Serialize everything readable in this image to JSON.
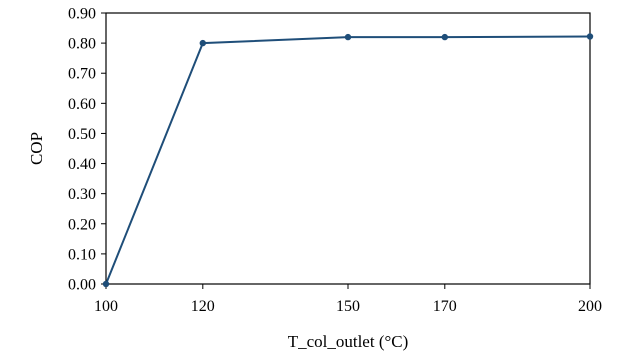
{
  "chart_data": {
    "type": "line",
    "title": "",
    "xlabel": "T_col_outlet (°C)",
    "ylabel": "COP",
    "categories": [
      "100",
      "120",
      "150",
      "170",
      "200"
    ],
    "series": [
      {
        "values": [
          0.0,
          0.8,
          0.82,
          0.82,
          0.822
        ],
        "color": "#1f4e79"
      }
    ],
    "ylim": [
      0,
      0.9
    ],
    "yticks": [
      "0.00",
      "0.10",
      "0.20",
      "0.30",
      "0.40",
      "0.50",
      "0.60",
      "0.70",
      "0.80",
      "0.90"
    ],
    "grid": false,
    "legend": "none",
    "marker": "circle"
  }
}
